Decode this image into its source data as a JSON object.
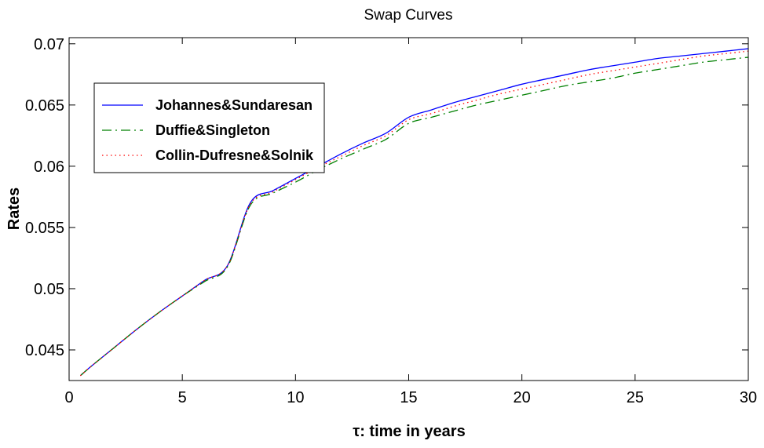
{
  "chart_data": {
    "type": "line",
    "title": "Swap Curves",
    "xlabel": "τ: time in years",
    "ylabel": "Rates",
    "xlim": [
      0,
      30
    ],
    "ylim": [
      0.0425,
      0.0705
    ],
    "xticks": [
      0,
      5,
      10,
      15,
      20,
      25,
      30
    ],
    "xtick_labels": [
      "0",
      "5",
      "10",
      "15",
      "20",
      "25",
      "30"
    ],
    "yticks": [
      0.045,
      0.05,
      0.055,
      0.06,
      0.065,
      0.07
    ],
    "ytick_labels": [
      "0.045",
      "0.05",
      "0.055",
      "0.06",
      "0.065",
      "0.07"
    ],
    "grid": false,
    "legend_position": "upper-left",
    "x": [
      0.5,
      1,
      2,
      3,
      4,
      5,
      6,
      7,
      8,
      9,
      10,
      11,
      12,
      13,
      14,
      15,
      16,
      17,
      18,
      19,
      20,
      21,
      22,
      23,
      24,
      25,
      26,
      27,
      28,
      29,
      30
    ],
    "series": [
      {
        "name": "Johannes&Sundaresan",
        "color": "#0000ff",
        "dash": "solid",
        "values": [
          0.0429,
          0.0437,
          0.0452,
          0.0467,
          0.0481,
          0.0494,
          0.0507,
          0.0519,
          0.057,
          0.058,
          0.059,
          0.06,
          0.061,
          0.0619,
          0.0627,
          0.064,
          0.0646,
          0.0652,
          0.0657,
          0.0662,
          0.0667,
          0.0671,
          0.0675,
          0.0679,
          0.0682,
          0.0685,
          0.0688,
          0.069,
          0.0692,
          0.0694,
          0.0696
        ]
      },
      {
        "name": "Duffie&Singleton",
        "color": "#008000",
        "dash": "dashdot",
        "values": [
          0.0429,
          0.0437,
          0.0452,
          0.0467,
          0.0481,
          0.0494,
          0.0506,
          0.0518,
          0.0568,
          0.0578,
          0.0587,
          0.0597,
          0.0606,
          0.0614,
          0.0622,
          0.0635,
          0.064,
          0.0645,
          0.065,
          0.0654,
          0.0658,
          0.0662,
          0.0666,
          0.0669,
          0.0672,
          0.0676,
          0.0679,
          0.0682,
          0.0685,
          0.0687,
          0.0689
        ]
      },
      {
        "name": "Collin-Dufresne&Solnik",
        "color": "#ff0000",
        "dash": "dotted",
        "values": [
          0.0429,
          0.0437,
          0.0452,
          0.0467,
          0.0481,
          0.0494,
          0.0507,
          0.0519,
          0.0569,
          0.0579,
          0.0589,
          0.0599,
          0.0608,
          0.0617,
          0.0625,
          0.0638,
          0.0643,
          0.0649,
          0.0654,
          0.0659,
          0.0663,
          0.0667,
          0.0671,
          0.0675,
          0.0678,
          0.0681,
          0.0684,
          0.0687,
          0.069,
          0.0692,
          0.0694
        ]
      }
    ]
  }
}
